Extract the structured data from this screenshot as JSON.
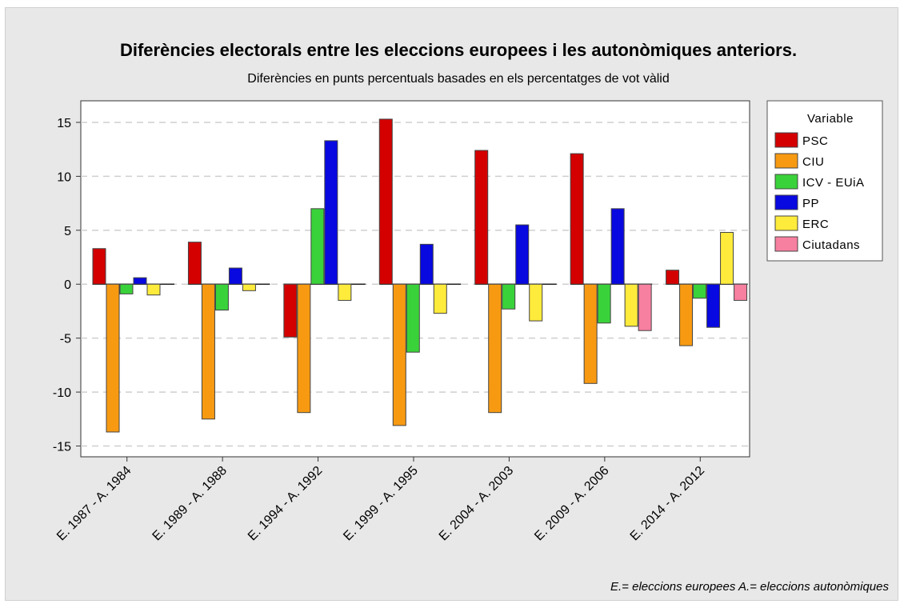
{
  "chart_data": {
    "type": "bar",
    "title": "Diferències electorals entre les eleccions europees i les autonòmiques anteriors.",
    "subtitle": "Diferències en punts percentuals basades en els percentatges de vot vàlid",
    "xlabel": "",
    "ylabel": "",
    "ylim": [
      -16.0,
      17.0
    ],
    "yticks": [
      -15,
      -10,
      -5,
      0,
      5,
      10,
      15
    ],
    "grid": true,
    "legend_title": "Variable",
    "legend_position": "right",
    "categories": [
      "E. 1987 - A. 1984",
      "E. 1989 - A. 1988",
      "E. 1994 - A. 1992",
      "E. 1999 - A. 1995",
      "E. 2004 - A. 2003",
      "E. 2009 - A. 2006",
      "E. 2014 - A. 2012"
    ],
    "series": [
      {
        "name": "PSC",
        "color": "#d40000",
        "values": [
          3.3,
          3.9,
          -4.9,
          15.3,
          12.4,
          12.1,
          1.3
        ]
      },
      {
        "name": "CIU",
        "color": "#f79a12",
        "values": [
          -13.7,
          -12.5,
          -11.9,
          -13.1,
          -11.9,
          -9.2,
          -5.7
        ]
      },
      {
        "name": "ICV - EUiA",
        "color": "#3ad23a",
        "values": [
          -0.9,
          -2.4,
          7.0,
          -6.3,
          -2.3,
          -3.6,
          -1.3
        ]
      },
      {
        "name": "PP",
        "color": "#0808e0",
        "values": [
          0.6,
          1.5,
          13.3,
          3.7,
          5.5,
          7.0,
          -4.0
        ]
      },
      {
        "name": "ERC",
        "color": "#ffeb3b",
        "values": [
          -1.0,
          -0.6,
          -1.5,
          -2.7,
          -3.4,
          -3.9,
          4.8
        ]
      },
      {
        "name": "Ciutadans",
        "color": "#f77fa0",
        "values": [
          0,
          0,
          0,
          0,
          0,
          -4.3,
          -1.5
        ]
      }
    ],
    "footnote": "E.= eleccions europees A.= eleccions autonòmiques"
  }
}
